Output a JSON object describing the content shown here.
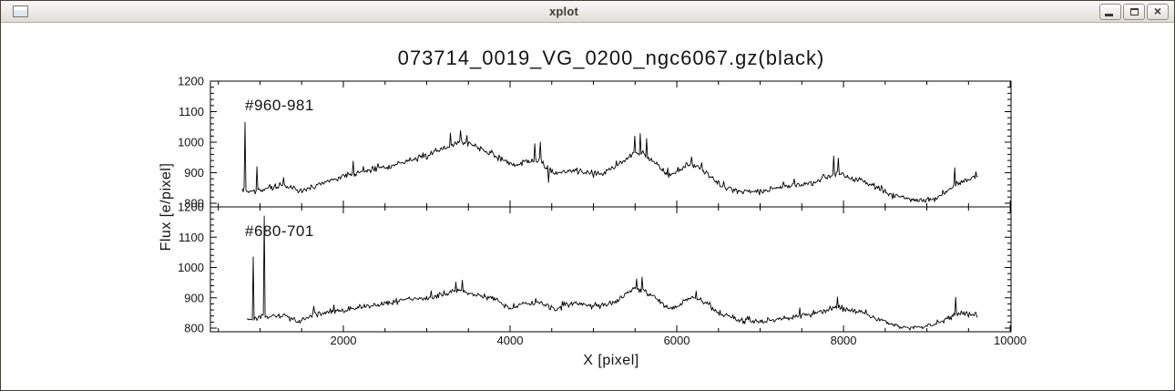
{
  "window": {
    "title": "xplot",
    "icons": {
      "window_icon": "window-glyph",
      "minimize": "underscore-bar",
      "maximize": "square-outline",
      "close_glyph": "×"
    }
  },
  "chart_data": {
    "type": "line",
    "title": "073714_0019_VG_0200_ngc6067.gz(black)",
    "xlabel": "X [pixel]",
    "ylabel": "Flux [e/pixel]",
    "xlim": [
      405,
      10010
    ],
    "x_ticks": [
      2000,
      4000,
      6000,
      8000,
      10000
    ],
    "x_minor_step": 500,
    "grid": false,
    "legend": "none",
    "line_color": "#000000",
    "panels": [
      {
        "label": "#960-981",
        "ylim": [
          788,
          1200
        ],
        "y_ticks": [
          800,
          900,
          1000,
          1100,
          1200
        ],
        "y_minor_step": 20,
        "noise_amplitude": 10,
        "seed": 7,
        "keypoints": [
          [
            787,
            845
          ],
          [
            830,
            840
          ],
          [
            900,
            838
          ],
          [
            1000,
            842
          ],
          [
            1150,
            852
          ],
          [
            1300,
            860
          ],
          [
            1450,
            838
          ],
          [
            1600,
            850
          ],
          [
            1800,
            872
          ],
          [
            2000,
            888
          ],
          [
            2150,
            898
          ],
          [
            2300,
            908
          ],
          [
            2450,
            918
          ],
          [
            2600,
            925
          ],
          [
            2750,
            938
          ],
          [
            2900,
            945
          ],
          [
            3050,
            962
          ],
          [
            3200,
            980
          ],
          [
            3350,
            998
          ],
          [
            3450,
            1000
          ],
          [
            3550,
            992
          ],
          [
            3700,
            972
          ],
          [
            3850,
            952
          ],
          [
            3950,
            935
          ],
          [
            4050,
            922
          ],
          [
            4150,
            935
          ],
          [
            4250,
            938
          ],
          [
            4350,
            942
          ],
          [
            4450,
            915
          ],
          [
            4550,
            897
          ],
          [
            4650,
            905
          ],
          [
            4800,
            908
          ],
          [
            4950,
            900
          ],
          [
            5100,
            898
          ],
          [
            5250,
            915
          ],
          [
            5400,
            950
          ],
          [
            5500,
            968
          ],
          [
            5600,
            962
          ],
          [
            5750,
            930
          ],
          [
            5900,
            888
          ],
          [
            6000,
            905
          ],
          [
            6100,
            922
          ],
          [
            6200,
            925
          ],
          [
            6300,
            912
          ],
          [
            6400,
            888
          ],
          [
            6500,
            862
          ],
          [
            6630,
            845
          ],
          [
            6750,
            838
          ],
          [
            6900,
            842
          ],
          [
            7050,
            840
          ],
          [
            7200,
            848
          ],
          [
            7350,
            855
          ],
          [
            7500,
            862
          ],
          [
            7650,
            868
          ],
          [
            7800,
            885
          ],
          [
            7900,
            898
          ],
          [
            8000,
            892
          ],
          [
            8100,
            882
          ],
          [
            8200,
            875
          ],
          [
            8350,
            858
          ],
          [
            8500,
            838
          ],
          [
            8650,
            820
          ],
          [
            8800,
            810
          ],
          [
            8950,
            808
          ],
          [
            9100,
            815
          ],
          [
            9250,
            838
          ],
          [
            9350,
            862
          ],
          [
            9450,
            872
          ],
          [
            9550,
            882
          ],
          [
            9610,
            888
          ]
        ],
        "spikes": [
          [
            820,
            1065
          ],
          [
            960,
            920
          ],
          [
            2120,
            938
          ],
          [
            3280,
            1030
          ],
          [
            3400,
            1038
          ],
          [
            3480,
            1022
          ],
          [
            4300,
            995
          ],
          [
            4360,
            1000
          ],
          [
            4460,
            868
          ],
          [
            5500,
            1020
          ],
          [
            5560,
            1028
          ],
          [
            5640,
            1012
          ],
          [
            6180,
            952
          ],
          [
            7880,
            955
          ],
          [
            7940,
            948
          ],
          [
            9340,
            916
          ]
        ]
      },
      {
        "label": "#680-701",
        "ylim": [
          788,
          1200
        ],
        "y_ticks": [
          800,
          900,
          1000,
          1100,
          1200
        ],
        "y_minor_step": 20,
        "noise_amplitude": 9,
        "seed": 13,
        "keypoints": [
          [
            842,
            832
          ],
          [
            900,
            828
          ],
          [
            1000,
            838
          ],
          [
            1150,
            840
          ],
          [
            1300,
            842
          ],
          [
            1450,
            820
          ],
          [
            1600,
            840
          ],
          [
            1800,
            852
          ],
          [
            2000,
            860
          ],
          [
            2150,
            866
          ],
          [
            2300,
            872
          ],
          [
            2450,
            880
          ],
          [
            2600,
            885
          ],
          [
            2750,
            892
          ],
          [
            2900,
            895
          ],
          [
            3050,
            902
          ],
          [
            3200,
            912
          ],
          [
            3350,
            922
          ],
          [
            3450,
            920
          ],
          [
            3550,
            912
          ],
          [
            3700,
            902
          ],
          [
            3850,
            892
          ],
          [
            3950,
            868
          ],
          [
            4050,
            872
          ],
          [
            4150,
            885
          ],
          [
            4250,
            880
          ],
          [
            4350,
            885
          ],
          [
            4450,
            872
          ],
          [
            4550,
            862
          ],
          [
            4650,
            875
          ],
          [
            4800,
            880
          ],
          [
            4950,
            872
          ],
          [
            5100,
            875
          ],
          [
            5250,
            885
          ],
          [
            5400,
            915
          ],
          [
            5500,
            932
          ],
          [
            5600,
            925
          ],
          [
            5750,
            898
          ],
          [
            5900,
            862
          ],
          [
            6000,
            872
          ],
          [
            6100,
            892
          ],
          [
            6200,
            898
          ],
          [
            6300,
            892
          ],
          [
            6400,
            872
          ],
          [
            6500,
            852
          ],
          [
            6630,
            838
          ],
          [
            6750,
            825
          ],
          [
            6900,
            825
          ],
          [
            7050,
            822
          ],
          [
            7200,
            830
          ],
          [
            7350,
            835
          ],
          [
            7500,
            842
          ],
          [
            7650,
            848
          ],
          [
            7800,
            858
          ],
          [
            7900,
            865
          ],
          [
            8000,
            862
          ],
          [
            8100,
            858
          ],
          [
            8200,
            852
          ],
          [
            8350,
            838
          ],
          [
            8500,
            822
          ],
          [
            8650,
            808
          ],
          [
            8800,
            803
          ],
          [
            8950,
            805
          ],
          [
            9100,
            815
          ],
          [
            9250,
            828
          ],
          [
            9350,
            845
          ],
          [
            9450,
            850
          ],
          [
            9550,
            842
          ],
          [
            9610,
            845
          ]
        ],
        "spikes": [
          [
            918,
            1035
          ],
          [
            1049,
            1170
          ],
          [
            1650,
            872
          ],
          [
            3350,
            952
          ],
          [
            3430,
            958
          ],
          [
            5520,
            962
          ],
          [
            5580,
            968
          ],
          [
            6230,
            922
          ],
          [
            7930,
            903
          ],
          [
            9350,
            902
          ]
        ]
      }
    ]
  }
}
